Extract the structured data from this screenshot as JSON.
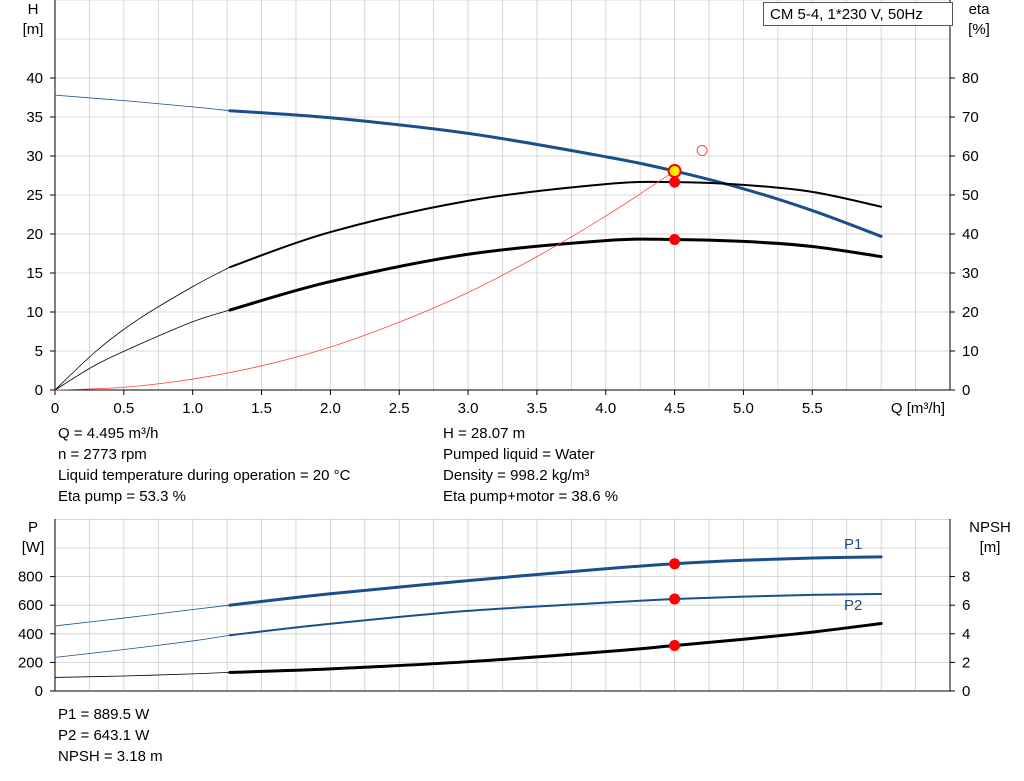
{
  "pump_label": "CM 5-4, 1*230 V, 50Hz",
  "colors": {
    "blue": "#1a4f8b",
    "black": "#000000",
    "red_marker": "#ff0000",
    "efficiency_line": "#ff4444",
    "grid": "#cccccc",
    "duty_point_fill": "#ffee00"
  },
  "info_top": {
    "q": "Q = 4.495 m³/h",
    "n": "n = 2773 rpm",
    "temp": "Liquid temperature during operation = 20 °C",
    "eta_pump": "Eta pump = 53.3 %",
    "h": "H = 28.07 m",
    "liquid": "Pumped liquid = Water",
    "density": "Density = 998.2 kg/m³",
    "eta_total": "Eta pump+motor = 38.6 %"
  },
  "info_bottom": {
    "p1": "P1 = 889.5 W",
    "p2": "P2 = 643.1 W",
    "npsh": "NPSH = 3.18 m"
  },
  "chart_data": [
    {
      "type": "line",
      "xlabel": "Q [m³/h]",
      "xlim": [
        0,
        6.5
      ],
      "xticks": [
        0,
        0.5,
        1.0,
        1.5,
        2.0,
        2.5,
        3.0,
        3.5,
        4.0,
        4.5,
        5.0,
        5.5
      ],
      "xtick_labels": [
        "0",
        "0.5",
        "1.0",
        "1.5",
        "2.0",
        "2.5",
        "3.0",
        "3.5",
        "4.0",
        "4.5",
        "5.0",
        "5.5"
      ],
      "ylabel": [
        "H",
        "[m]"
      ],
      "ylim": [
        0,
        45
      ],
      "yticks": [
        0,
        5,
        10,
        15,
        20,
        25,
        30,
        35,
        40
      ],
      "y2label": [
        "eta",
        "[%]"
      ],
      "y2lim": [
        0,
        90
      ],
      "y2ticks": [
        0,
        10,
        20,
        30,
        40,
        50,
        60,
        70,
        80
      ],
      "grid": true,
      "series": [
        {
          "axis": "left",
          "color": "#1a4f8b",
          "style": "thick",
          "x": [
            1.27,
            2.0,
            3.0,
            4.0,
            4.5,
            5.0,
            5.5,
            6.0
          ],
          "y": [
            35.8,
            34.9,
            32.9,
            29.9,
            28.07,
            25.8,
            23.0,
            19.7
          ]
        },
        {
          "axis": "left",
          "color": "#1a4f8b",
          "style": "thin",
          "x": [
            0,
            0.5,
            1.0,
            1.27
          ],
          "y": [
            37.8,
            37.1,
            36.3,
            35.8
          ]
        },
        {
          "axis": "right",
          "color": "#000000",
          "style": "medium",
          "x": [
            1.27,
            2.0,
            3.0,
            4.0,
            4.5,
            5.0,
            5.5,
            6.0
          ],
          "y": [
            31.5,
            40.5,
            48.5,
            52.8,
            53.3,
            52.6,
            50.8,
            47.0
          ]
        },
        {
          "axis": "right",
          "color": "#000000",
          "style": "thin",
          "x": [
            0,
            0.3,
            0.6,
            1.0,
            1.27
          ],
          "y": [
            0,
            10,
            18,
            26.5,
            31.5
          ]
        },
        {
          "axis": "right",
          "color": "#000000",
          "style": "thick",
          "x": [
            1.27,
            2.0,
            3.0,
            4.0,
            4.5,
            5.0,
            5.5,
            6.0
          ],
          "y": [
            20.5,
            27.8,
            34.8,
            38.3,
            38.6,
            38.1,
            36.8,
            34.2
          ]
        },
        {
          "axis": "right",
          "color": "#000000",
          "style": "thin",
          "x": [
            0,
            0.3,
            0.6,
            1.0,
            1.27
          ],
          "y": [
            0,
            6.5,
            11.5,
            17.5,
            20.5
          ]
        },
        {
          "axis": "left",
          "color": "#ff4444",
          "style": "hair",
          "x": [
            0,
            0.5,
            1.0,
            1.5,
            2.0,
            2.5,
            3.0,
            3.5,
            4.0,
            4.5
          ],
          "y": [
            0,
            0.35,
            1.4,
            3.1,
            5.5,
            8.7,
            12.5,
            17.1,
            22.3,
            28.07
          ]
        }
      ],
      "markers": [
        {
          "type": "duty-point",
          "x": 4.5,
          "y": 28.07,
          "axis": "left"
        },
        {
          "type": "point",
          "x": 4.5,
          "y": 53.3,
          "axis": "right"
        },
        {
          "type": "point",
          "x": 4.5,
          "y": 38.6,
          "axis": "right"
        },
        {
          "type": "open-circle",
          "x": 4.7,
          "y": 30.7,
          "axis": "left"
        }
      ]
    },
    {
      "type": "line",
      "xlim": [
        0,
        6.5
      ],
      "ylabel": [
        "P",
        "[W]"
      ],
      "ylim": [
        0,
        1000
      ],
      "yticks": [
        0,
        200,
        400,
        600,
        800
      ],
      "y2label": [
        "NPSH",
        "[m]"
      ],
      "y2lim": [
        0,
        10
      ],
      "y2ticks": [
        0,
        2,
        4,
        6,
        8
      ],
      "grid": true,
      "series": [
        {
          "name": "P1",
          "axis": "left",
          "color": "#1a4f8b",
          "style": "thick",
          "x": [
            1.27,
            2.0,
            3.0,
            4.0,
            4.5,
            5.0,
            5.5,
            6.0
          ],
          "y": [
            600,
            680,
            772,
            855,
            889.5,
            914,
            930,
            938
          ]
        },
        {
          "axis": "left",
          "color": "#1a4f8b",
          "style": "thin",
          "x": [
            0,
            0.5,
            1.0,
            1.27
          ],
          "y": [
            455,
            510,
            570,
            600
          ]
        },
        {
          "name": "P2",
          "axis": "left",
          "color": "#1a4f8b",
          "style": "medium",
          "x": [
            1.27,
            2.0,
            3.0,
            4.0,
            4.5,
            5.0,
            5.5,
            6.0
          ],
          "y": [
            390,
            470,
            560,
            618,
            643.1,
            660,
            672,
            678
          ]
        },
        {
          "axis": "left",
          "color": "#1a4f8b",
          "style": "thin",
          "x": [
            0,
            0.5,
            1.0,
            1.27
          ],
          "y": [
            235,
            290,
            350,
            390
          ]
        },
        {
          "axis": "right",
          "color": "#000000",
          "style": "thick",
          "x": [
            1.27,
            2.0,
            3.0,
            4.0,
            4.5,
            5.0,
            5.5,
            6.0
          ],
          "y": [
            1.3,
            1.55,
            2.05,
            2.75,
            3.18,
            3.62,
            4.12,
            4.72
          ]
        },
        {
          "axis": "right",
          "color": "#000000",
          "style": "thin",
          "x": [
            0,
            0.5,
            1.0,
            1.27
          ],
          "y": [
            0.95,
            1.05,
            1.2,
            1.3
          ]
        }
      ],
      "markers": [
        {
          "type": "point",
          "x": 4.5,
          "y": 889.5,
          "axis": "left"
        },
        {
          "type": "point",
          "x": 4.5,
          "y": 643.1,
          "axis": "left"
        },
        {
          "type": "point",
          "x": 4.5,
          "y": 3.18,
          "axis": "right"
        }
      ]
    }
  ]
}
